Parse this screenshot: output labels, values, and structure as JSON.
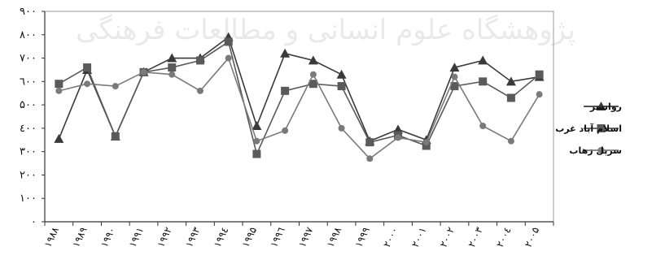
{
  "chart_data": {
    "type": "line",
    "title": "",
    "xlabel": "",
    "ylabel": "",
    "categories": [
      "۱۹۸۸",
      "۱۹۸۹",
      "۱۹۹۰",
      "۱۹۹۱",
      "۱۹۹۲",
      "۱۹۹۳",
      "۱۹۹٤",
      "۱۹۹۵",
      "۱۹۹٦",
      "۱۹۹۷",
      "۱۹۹۸",
      "۱۹۹۹",
      "۲۰۰۰",
      "۲۰۰۱",
      "۲۰۰۲",
      "۲۰۰۳",
      "۲۰۰٤",
      "۲۰۰۵"
    ],
    "y_ticks": [
      "۰",
      "۱۰۰",
      "۲۰۰",
      "۳۰۰",
      "٤۰۰",
      "۵۰۰",
      "٦۰۰",
      "۷۰۰",
      "۸۰۰",
      "۹۰۰"
    ],
    "ylim": [
      0,
      900
    ],
    "grid": false,
    "legend_position": "right",
    "series": [
      {
        "name": "روانسر",
        "marker": "triangle",
        "color": "#3a3a3a",
        "values": [
          355,
          650,
          365,
          640,
          700,
          700,
          790,
          410,
          720,
          690,
          630,
          345,
          395,
          350,
          660,
          690,
          600,
          620
        ]
      },
      {
        "name": "اسلام آباد غرب",
        "marker": "square",
        "color": "#5a5a5a",
        "values": [
          590,
          660,
          365,
          640,
          660,
          690,
          770,
          290,
          560,
          590,
          580,
          340,
          370,
          325,
          580,
          600,
          530,
          630
        ]
      },
      {
        "name": "سرپل زهاب",
        "marker": "circle",
        "color": "#7a7a7a",
        "values": [
          560,
          590,
          580,
          640,
          630,
          560,
          700,
          345,
          390,
          630,
          400,
          270,
          360,
          340,
          620,
          410,
          345,
          545
        ]
      }
    ]
  },
  "watermark": "پژوهشگاه علوم انسانی و مطالعات فرهنگی"
}
